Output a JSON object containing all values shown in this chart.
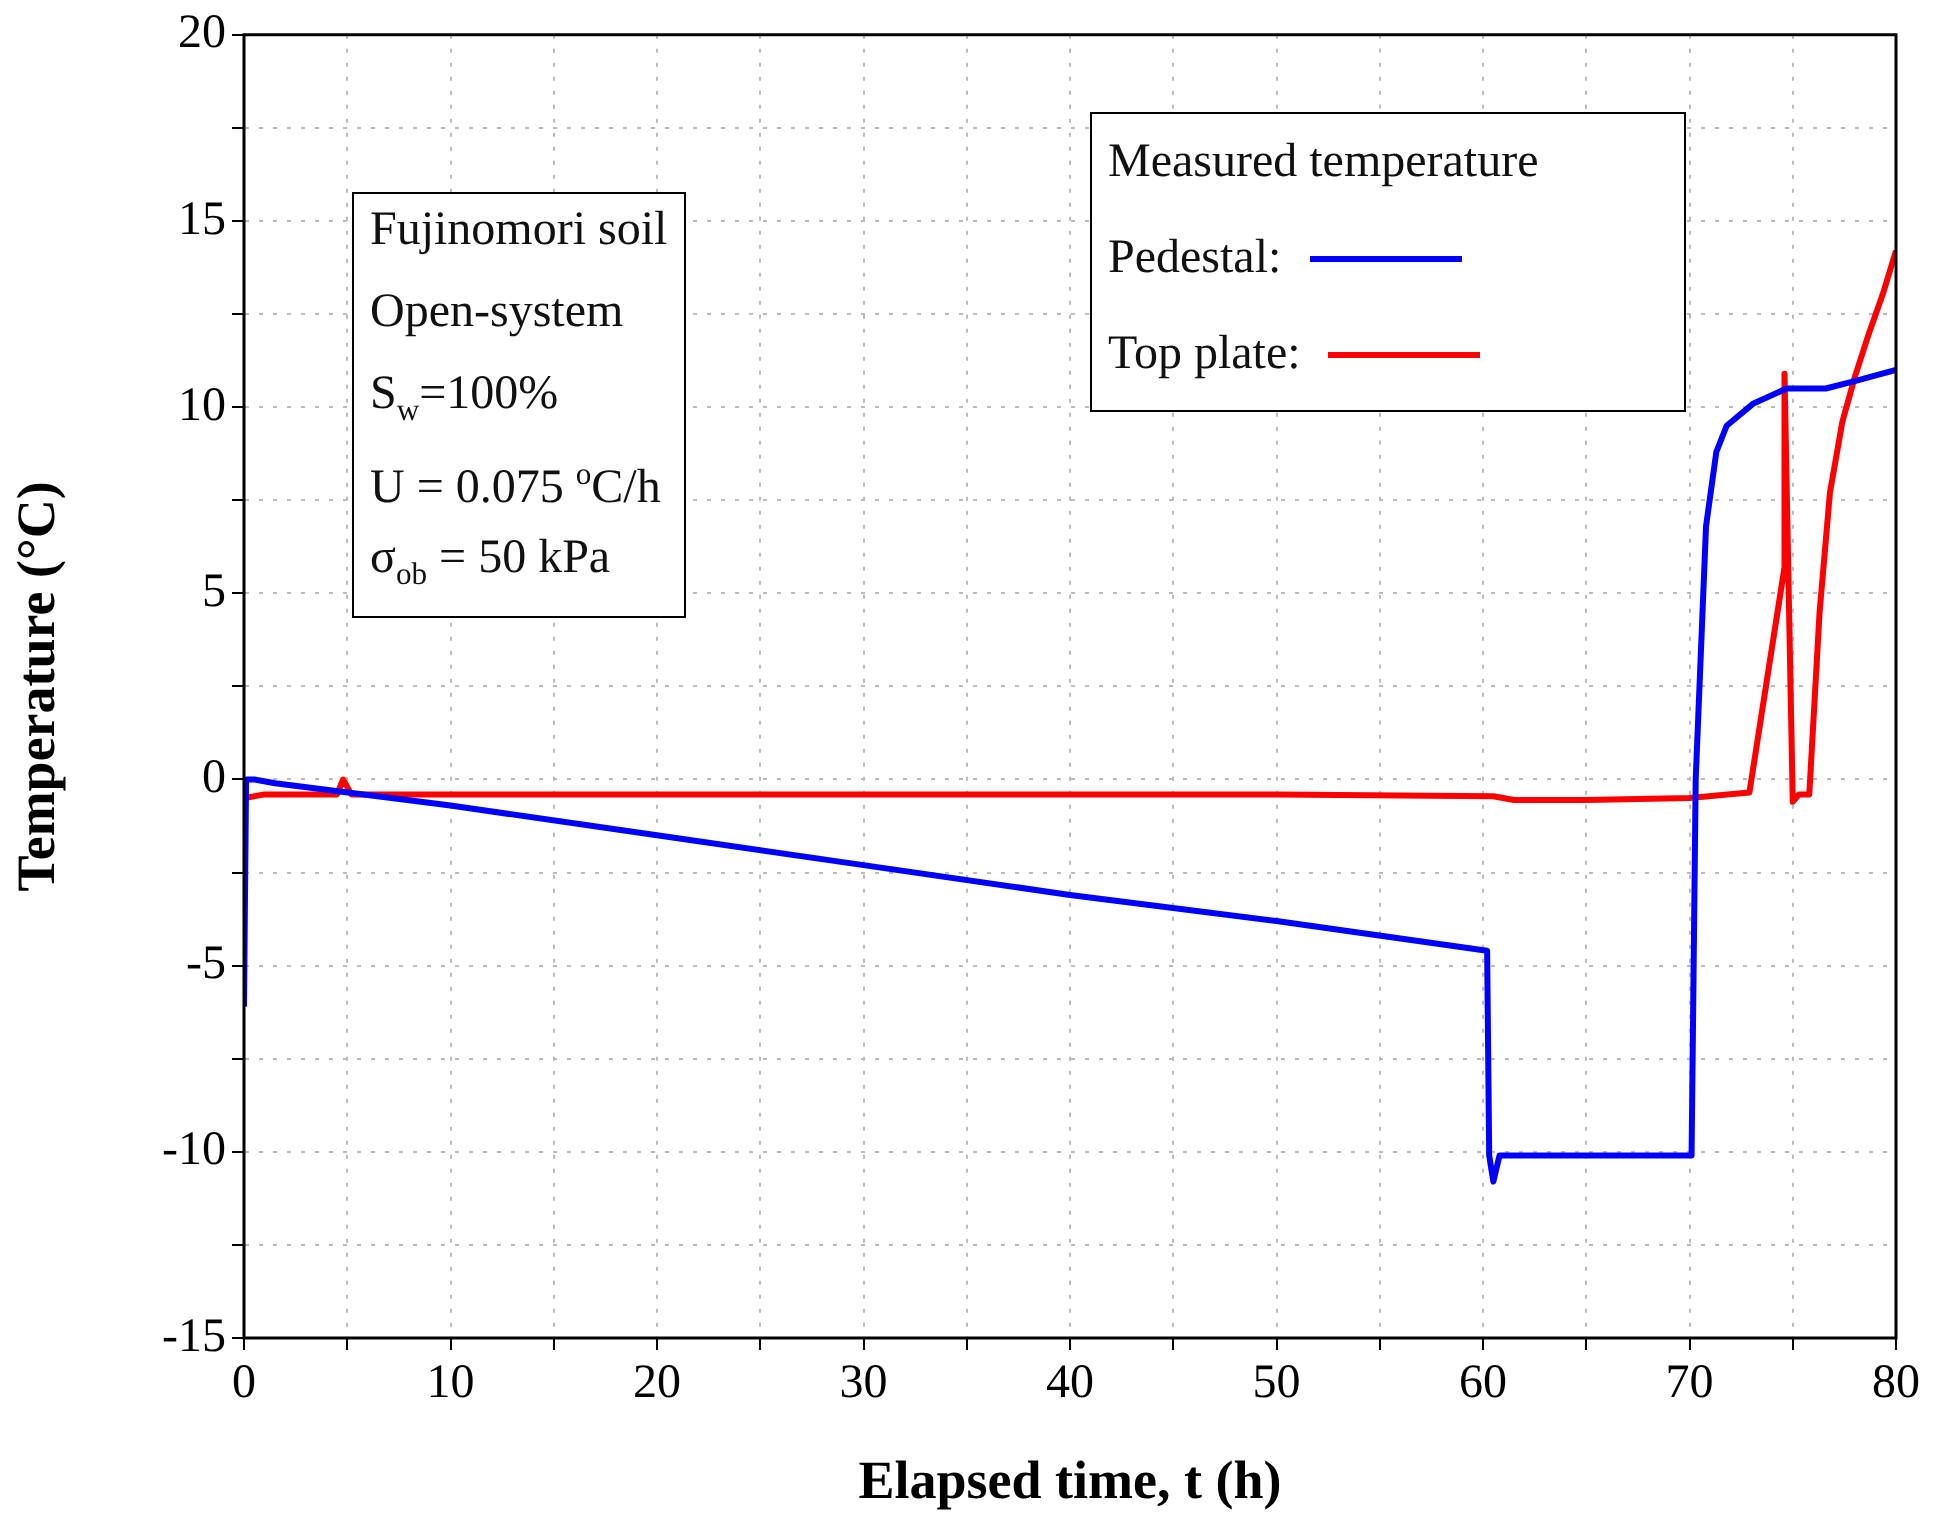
{
  "chart_data": {
    "type": "line",
    "xlabel": "Elapsed time, t (h)",
    "ylabel": "Temperature (°C)",
    "legend_title": "Measured temperature",
    "legend": "top right",
    "grid": true,
    "marker": "none",
    "line_style": "solid",
    "xlim": [
      0,
      80
    ],
    "ylim": [
      -15,
      20
    ],
    "xticks": [
      0,
      {
        "value": 5,
        "label": null
      },
      10,
      {
        "value": 15,
        "label": null
      },
      20,
      {
        "value": 25,
        "label": null
      },
      30,
      {
        "value": 35,
        "label": null
      },
      40,
      {
        "value": 45,
        "label": null
      },
      50,
      {
        "value": 55,
        "label": null
      },
      60,
      {
        "value": 65,
        "label": null
      },
      70,
      {
        "value": 75,
        "label": null
      },
      80
    ],
    "yticks": [
      -15,
      {
        "value": -12.5,
        "label": null
      },
      -10,
      {
        "value": -7.5,
        "label": null
      },
      -5,
      {
        "value": -2.5,
        "label": null
      },
      0,
      {
        "value": 2.5,
        "label": null
      },
      5,
      {
        "value": 7.5,
        "label": null
      },
      10,
      {
        "value": 12.5,
        "label": null
      },
      15,
      {
        "value": 17.5,
        "label": null
      },
      20
    ],
    "annotations": [
      "Fujinomori soil",
      "Open-system",
      "S$_{w}$=100%",
      "U = 0.075 $^{o}$C/h",
      "σ$_{ob}$ = 50 kPa"
    ],
    "series": [
      {
        "name": "Pedestal:",
        "color": "#0000ff",
        "x": [
          0,
          0.1,
          0.5,
          1.5,
          10,
          20,
          30,
          40,
          50,
          60.2,
          60.3,
          60.5,
          60.8,
          65,
          70.1,
          70.3,
          70.8,
          71.3,
          71.8,
          73.1,
          74.7,
          75.5,
          76.6,
          78,
          80
        ],
        "values": [
          -6.1,
          0,
          0,
          -0.1,
          -0.7,
          -1.5,
          -2.3,
          -3.1,
          -3.8,
          -4.6,
          -10.1,
          -10.8,
          -10.1,
          -10.1,
          -10.1,
          0,
          6.8,
          8.8,
          9.5,
          10.1,
          10.5,
          10.5,
          10.5,
          10.7,
          11.0
        ]
      },
      {
        "name": "Top plate:",
        "color": "#ff0000",
        "x": [
          0,
          1,
          4.5,
          4.8,
          5.2,
          10,
          20,
          30,
          40,
          50,
          60.5,
          61.5,
          65,
          70,
          72.9,
          74.6,
          74.6,
          75.0,
          75.3,
          75.8,
          76.3,
          76.8,
          77.4,
          78,
          78.7,
          79.4,
          80
        ],
        "values": [
          -0.5,
          -0.4,
          -0.4,
          0,
          -0.4,
          -0.4,
          -0.4,
          -0.4,
          -0.4,
          -0.4,
          -0.45,
          -0.55,
          -0.55,
          -0.5,
          -0.35,
          5.7,
          10.9,
          -0.6,
          -0.4,
          -0.4,
          4.5,
          7.7,
          9.6,
          10.8,
          12.0,
          13.1,
          14.2
        ]
      }
    ]
  }
}
